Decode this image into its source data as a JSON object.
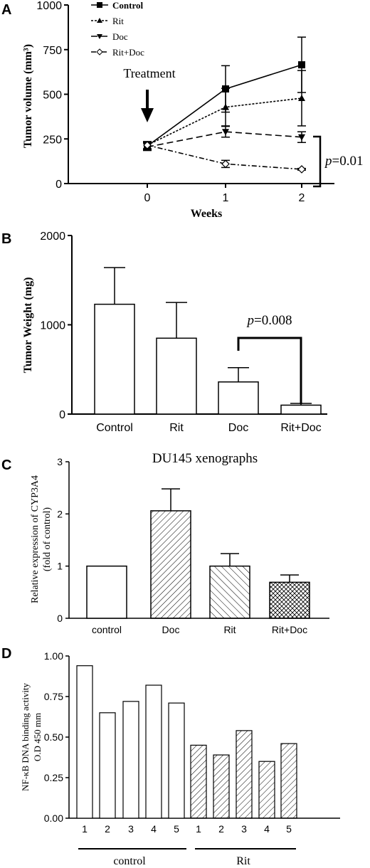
{
  "chart_data": [
    {
      "panel": "A",
      "type": "line",
      "ylabel": "Tumor volume (mm³)",
      "xlabel": "Weeks",
      "ylim": [
        0,
        1000
      ],
      "yticks": [
        "0",
        "250",
        "500",
        "750",
        "1000"
      ],
      "x": [
        0,
        1,
        2
      ],
      "xticks": [
        "0",
        "1",
        "2"
      ],
      "annotation": "Treatment",
      "pvalue": "p=0.01",
      "series": [
        {
          "name": "Control",
          "values": [
            210,
            530,
            665
          ],
          "errors": [
            20,
            130,
            155
          ]
        },
        {
          "name": "Rit",
          "values": [
            215,
            428,
            478
          ],
          "errors": [
            20,
            105,
            155
          ]
        },
        {
          "name": "Doc",
          "values": [
            205,
            290,
            260
          ],
          "errors": [
            20,
            30,
            30
          ]
        },
        {
          "name": "Rit+Doc",
          "values": [
            215,
            110,
            80
          ],
          "errors": [
            20,
            20,
            5
          ]
        }
      ]
    },
    {
      "panel": "B",
      "type": "bar",
      "ylabel": "Tumor Weight (mg)",
      "ylim": [
        0,
        2000
      ],
      "yticks": [
        "0",
        "1000",
        "2000"
      ],
      "categories": [
        "Control",
        "Rit",
        "Doc",
        "Rit+Doc"
      ],
      "values": [
        1230,
        850,
        360,
        100
      ],
      "errors": [
        410,
        400,
        160,
        20
      ],
      "pvalue": "p=0.008"
    },
    {
      "panel": "C",
      "type": "bar",
      "title": "DU145 xenographs",
      "ylabel": "Relative expression of CYP3A4",
      "ylabel2": "(fold of control)",
      "ylim": [
        0,
        3
      ],
      "yticks": [
        "0",
        "1",
        "2",
        "3"
      ],
      "categories": [
        "control",
        "Doc",
        "Rit",
        "Rit+Doc"
      ],
      "values": [
        1.0,
        2.06,
        1.0,
        0.69
      ],
      "errors": [
        0,
        0.42,
        0.24,
        0.14
      ]
    },
    {
      "panel": "D",
      "type": "bar",
      "ylabel": "NF-κB DNA binding activity",
      "ylabel2": "O.D 450 mm",
      "ylim": [
        0,
        1
      ],
      "yticks": [
        "0.00",
        "0.25",
        "0.50",
        "0.75",
        "1.00"
      ],
      "categories": [
        "1",
        "2",
        "3",
        "4",
        "5",
        "1",
        "2",
        "3",
        "4",
        "5"
      ],
      "values": [
        0.94,
        0.65,
        0.72,
        0.82,
        0.71,
        0.45,
        0.39,
        0.54,
        0.35,
        0.46
      ],
      "groups": [
        {
          "label": "control",
          "count": 5
        },
        {
          "label": "Rit",
          "count": 5
        }
      ]
    }
  ],
  "panel_labels": [
    "A",
    "B",
    "C",
    "D"
  ],
  "colors": {
    "ink": "#000000",
    "background": "#ffffff"
  }
}
